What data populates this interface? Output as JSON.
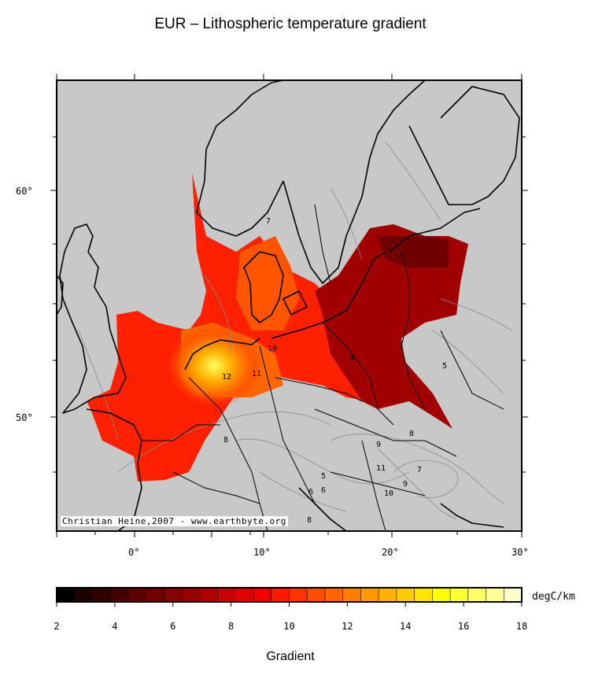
{
  "title": "EUR – Lithospheric temperature gradient",
  "credit": "Christian Heine,2007 - www.earthbyte.org",
  "map": {
    "lon_range": [
      -6,
      30
    ],
    "lat_range": [
      46,
      64
    ],
    "lon_ticks": [
      "0°",
      "10°",
      "20°",
      "30°"
    ],
    "lat_ticks": [
      "60°",
      "50°"
    ],
    "contour_labels": [
      "7",
      "8",
      "9",
      "10",
      "11",
      "12",
      "5",
      "6",
      "8",
      "9",
      "10",
      "11",
      "7",
      "9",
      "5",
      "6",
      "8"
    ]
  },
  "colorbar": {
    "label": "Gradient",
    "unit": "degC/km",
    "ticks": [
      "2",
      "4",
      "6",
      "8",
      "10",
      "12",
      "14",
      "16",
      "18"
    ],
    "colors": [
      "#000000",
      "#1a0000",
      "#300000",
      "#470000",
      "#5c0000",
      "#700000",
      "#850000",
      "#990000",
      "#b00000",
      "#c80000",
      "#e00000",
      "#f50000",
      "#ff1a00",
      "#ff3300",
      "#ff4d00",
      "#ff6600",
      "#ff8000",
      "#ff9900",
      "#ffb300",
      "#ffcc00",
      "#ffe600",
      "#ffff00",
      "#ffff33",
      "#ffff66",
      "#ffff99",
      "#ffffcc"
    ]
  }
}
